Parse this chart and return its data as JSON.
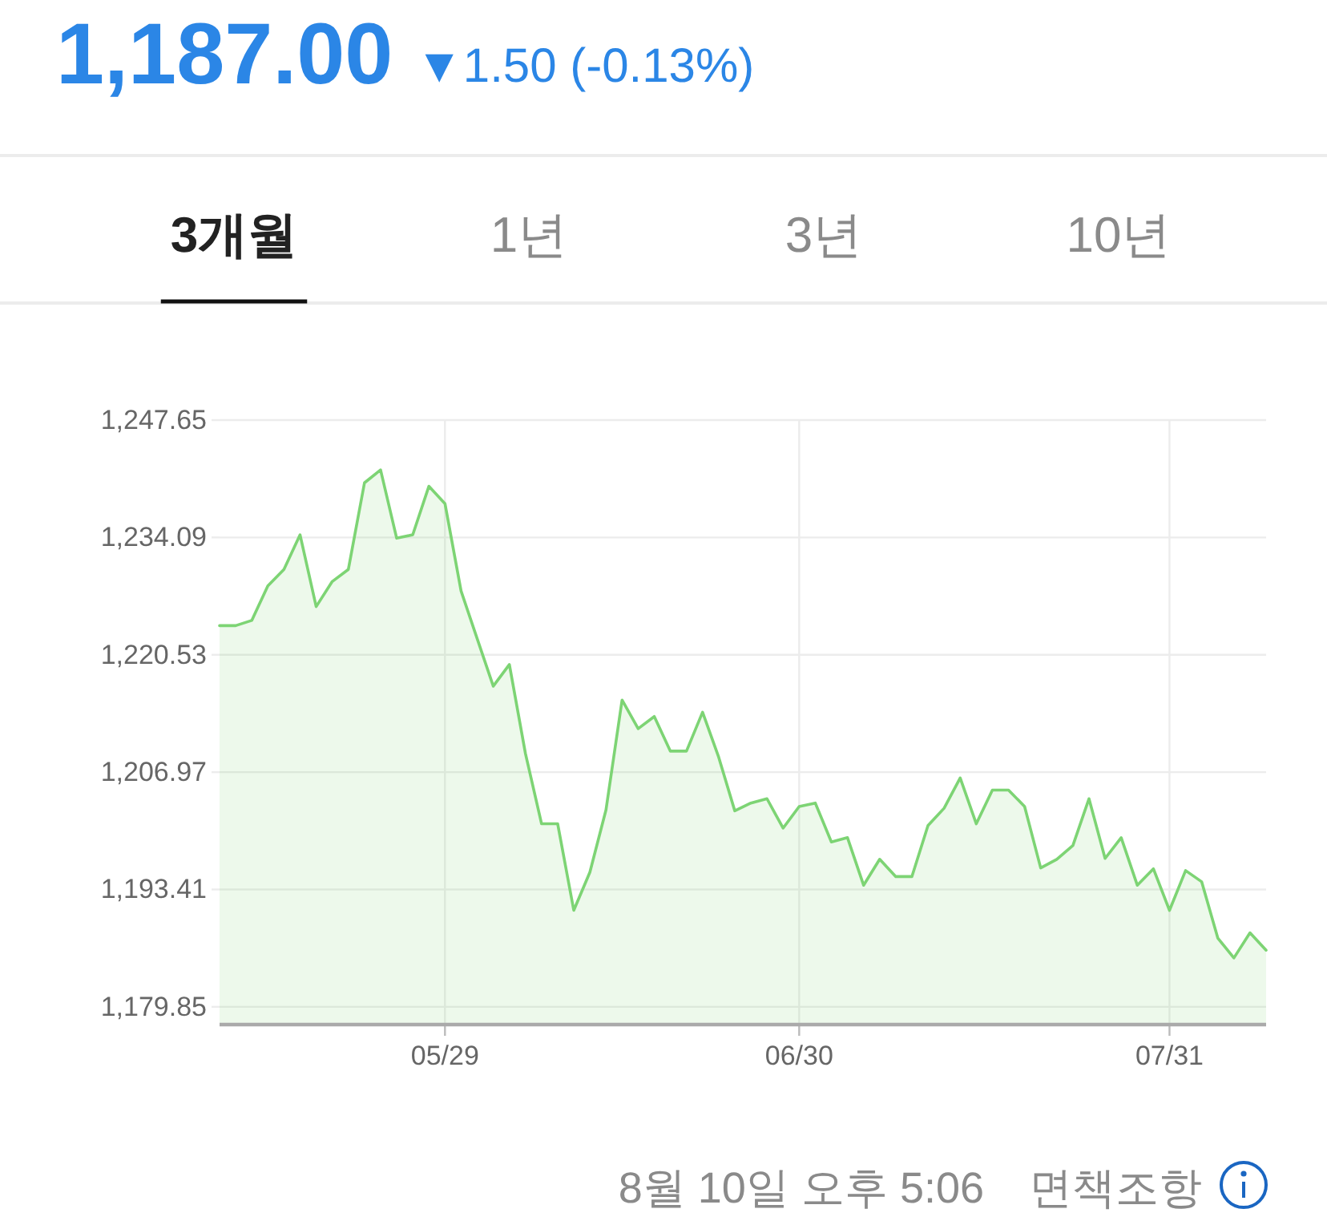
{
  "chart_data": {
    "type": "area",
    "title": "1,187.00",
    "subtitle": "▼1.50 (-0.13%)",
    "categories": [
      null,
      null,
      null,
      null,
      null,
      null,
      null,
      null,
      null,
      null,
      null,
      null,
      null,
      null,
      "05/29",
      null,
      null,
      null,
      null,
      null,
      null,
      null,
      null,
      null,
      null,
      null,
      null,
      null,
      null,
      null,
      null,
      null,
      null,
      null,
      null,
      null,
      "06/30",
      null,
      null,
      null,
      null,
      null,
      null,
      null,
      null,
      null,
      null,
      null,
      null,
      null,
      null,
      null,
      null,
      null,
      null,
      null,
      null,
      null,
      null,
      "07/31",
      null,
      null,
      null,
      null,
      null,
      null
    ],
    "series": [
      {
        "color": "#7dd474",
        "values": [
          1223.9,
          1223.9,
          1224.5,
          1228.5,
          1230.4,
          1234.4,
          1226.1,
          1229.0,
          1230.4,
          1240.4,
          1241.9,
          1234.0,
          1234.4,
          1240.0,
          1238.0,
          1227.9,
          1222.4,
          1216.9,
          1219.4,
          1209.1,
          1201.0,
          1201.0,
          1191.0,
          1195.4,
          1202.6,
          1215.3,
          1212.0,
          1213.4,
          1209.4,
          1209.4,
          1213.9,
          1208.7,
          1202.5,
          1203.4,
          1203.9,
          1200.5,
          1203.0,
          1203.4,
          1198.9,
          1199.4,
          1193.9,
          1196.9,
          1194.9,
          1194.9,
          1200.8,
          1202.8,
          1206.3,
          1201.0,
          1204.9,
          1204.9,
          1203.0,
          1195.9,
          1196.9,
          1198.5,
          1203.9,
          1197.0,
          1199.4,
          1193.9,
          1195.8,
          1191.0,
          1195.6,
          1194.3,
          1187.8,
          1185.5,
          1188.4,
          1186.4
        ]
      }
    ],
    "ylim": [
      1177.8,
      1247.65
    ],
    "yticks": [
      {
        "value": 1179.85,
        "label": "1,179.85"
      },
      {
        "value": 1193.41,
        "label": "1,193.41"
      },
      {
        "value": 1206.97,
        "label": "1,206.97"
      },
      {
        "value": 1220.53,
        "label": "1,220.53"
      },
      {
        "value": 1234.09,
        "label": "1,234.09"
      },
      {
        "value": 1247.65,
        "label": "1,247.65"
      }
    ],
    "grid": true,
    "annotations": [
      "3개월",
      "1년",
      "3년",
      "10년",
      "8월 10일 오후 5:06",
      "면책조항"
    ]
  }
}
